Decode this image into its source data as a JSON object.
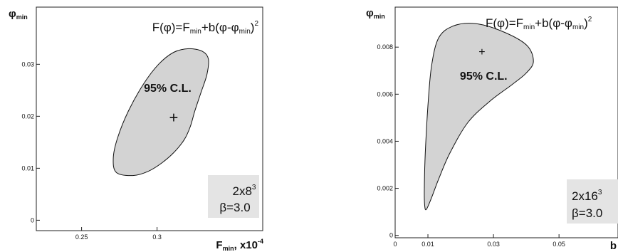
{
  "chart_data": [
    {
      "type": "scatter",
      "xlabel": "F_min, x10^-4",
      "xlabel_main": "F",
      "xlabel_sub": "min",
      "xlabel_tail": ", x10",
      "xlabel_exp": "-4",
      "ylabel": "φ_min",
      "ylabel_main": "φ",
      "ylabel_sub": "min",
      "formula": {
        "pre": "F(φ)=F",
        "sub1": "min",
        "mid": "+b(φ-φ",
        "sub2": "min",
        "post": ")",
        "sup": "2"
      },
      "xlim": [
        0.22,
        0.37
      ],
      "ylim": [
        -0.002,
        0.041
      ],
      "xticks": [
        {
          "v": 0.25,
          "label": "0.25"
        },
        {
          "v": 0.3,
          "label": "0.3"
        }
      ],
      "yticks": [
        {
          "v": 0.0,
          "label": "0"
        },
        {
          "v": 0.01,
          "label": "0.01"
        },
        {
          "v": 0.02,
          "label": "0.02"
        },
        {
          "v": 0.03,
          "label": "0.03"
        }
      ],
      "point": {
        "x": 0.311,
        "y": 0.0197
      },
      "region_label": "95% C.L.",
      "region_label_at": {
        "x": 0.307,
        "y": 0.0255
      },
      "region_fill": "#d3d3d3",
      "region": [
        [
          0.284,
          0.0086
        ],
        [
          0.294,
          0.0094
        ],
        [
          0.303,
          0.011
        ],
        [
          0.311,
          0.013
        ],
        [
          0.318,
          0.0155
        ],
        [
          0.322,
          0.018
        ],
        [
          0.325,
          0.021
        ],
        [
          0.329,
          0.0245
        ],
        [
          0.333,
          0.028
        ],
        [
          0.334,
          0.031
        ],
        [
          0.33,
          0.0325
        ],
        [
          0.321,
          0.033
        ],
        [
          0.311,
          0.0323
        ],
        [
          0.301,
          0.03
        ],
        [
          0.291,
          0.0262
        ],
        [
          0.281,
          0.021
        ],
        [
          0.274,
          0.016
        ],
        [
          0.271,
          0.012
        ],
        [
          0.273,
          0.0092
        ]
      ],
      "info_box": {
        "l1": "2x8",
        "l1_sup": "3",
        "l2": "β=3.0"
      }
    },
    {
      "type": "scatter",
      "xlabel": "b",
      "xlabel_main": "b",
      "ylabel": "φ_min",
      "ylabel_main": "φ",
      "ylabel_sub": "min",
      "formula": {
        "pre": "F(φ)=F",
        "sub1": "min",
        "mid": "+b(φ-φ",
        "sub2": "min",
        "post": ")",
        "sup": "2"
      },
      "xlim": [
        0.0,
        0.068
      ],
      "ylim": [
        -0.0001,
        0.0097
      ],
      "xticks": [
        {
          "v": 0.0,
          "label": "0"
        },
        {
          "v": 0.01,
          "label": "0.01"
        },
        {
          "v": 0.03,
          "label": "0.03"
        },
        {
          "v": 0.05,
          "label": "0.05"
        }
      ],
      "yticks": [
        {
          "v": 0.0,
          "label": "0"
        },
        {
          "v": 0.002,
          "label": "0.002"
        },
        {
          "v": 0.004,
          "label": "0.004"
        },
        {
          "v": 0.006,
          "label": "0.006"
        },
        {
          "v": 0.008,
          "label": "0.008"
        }
      ],
      "point": {
        "x": 0.0265,
        "y": 0.0078
      },
      "region_label": "95% C.L.",
      "region_label_at": {
        "x": 0.027,
        "y": 0.0068
      },
      "region_fill": "#d3d3d3",
      "region": [
        [
          0.0095,
          0.0011
        ],
        [
          0.0111,
          0.0016
        ],
        [
          0.0133,
          0.0024
        ],
        [
          0.0167,
          0.0035
        ],
        [
          0.0222,
          0.0048
        ],
        [
          0.0289,
          0.0057
        ],
        [
          0.0356,
          0.0064
        ],
        [
          0.04,
          0.0069
        ],
        [
          0.0422,
          0.0074
        ],
        [
          0.04,
          0.0081
        ],
        [
          0.0322,
          0.0087
        ],
        [
          0.0244,
          0.009
        ],
        [
          0.0178,
          0.0089
        ],
        [
          0.0133,
          0.0084
        ],
        [
          0.0111,
          0.0072
        ],
        [
          0.01,
          0.0055
        ],
        [
          0.0092,
          0.0035
        ],
        [
          0.0089,
          0.002
        ],
        [
          0.009,
          0.0013
        ]
      ],
      "info_box": {
        "l1": "2x16",
        "l1_sup": "3",
        "l2": "β=3.0"
      }
    }
  ]
}
